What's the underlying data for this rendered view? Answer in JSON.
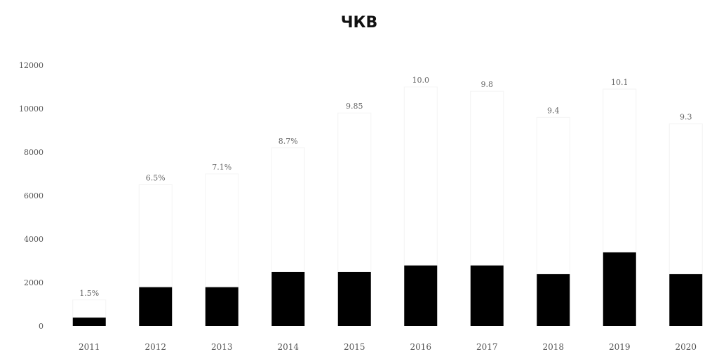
{
  "chart_data": {
    "type": "bar",
    "title": "ЧКВ",
    "xlabel": "",
    "ylabel": "",
    "ylim": [
      0,
      12000
    ],
    "yticks": [
      0,
      2000,
      4000,
      6000,
      8000,
      10000,
      12000
    ],
    "grid": false,
    "legend": "none",
    "categories": [
      "2011",
      "2012",
      "2013",
      "2014",
      "2015",
      "2016",
      "2017",
      "2018",
      "2019",
      "2020"
    ],
    "series": [
      {
        "values": [
          400,
          1800,
          1800,
          2500,
          2500,
          2800,
          2800,
          2400,
          3400,
          2400
        ],
        "color": "#000000"
      },
      {
        "values": [
          1200,
          6500,
          7000,
          8200,
          9800,
          11000,
          10800,
          9600,
          10900,
          9300
        ],
        "color": "#ffffff",
        "labels": [
          "1.5%",
          "6.5%",
          "7.1%",
          "8.7%",
          "9.85",
          "10.0",
          "9.8",
          "9.4",
          "10.1",
          "9.3"
        ]
      }
    ]
  }
}
